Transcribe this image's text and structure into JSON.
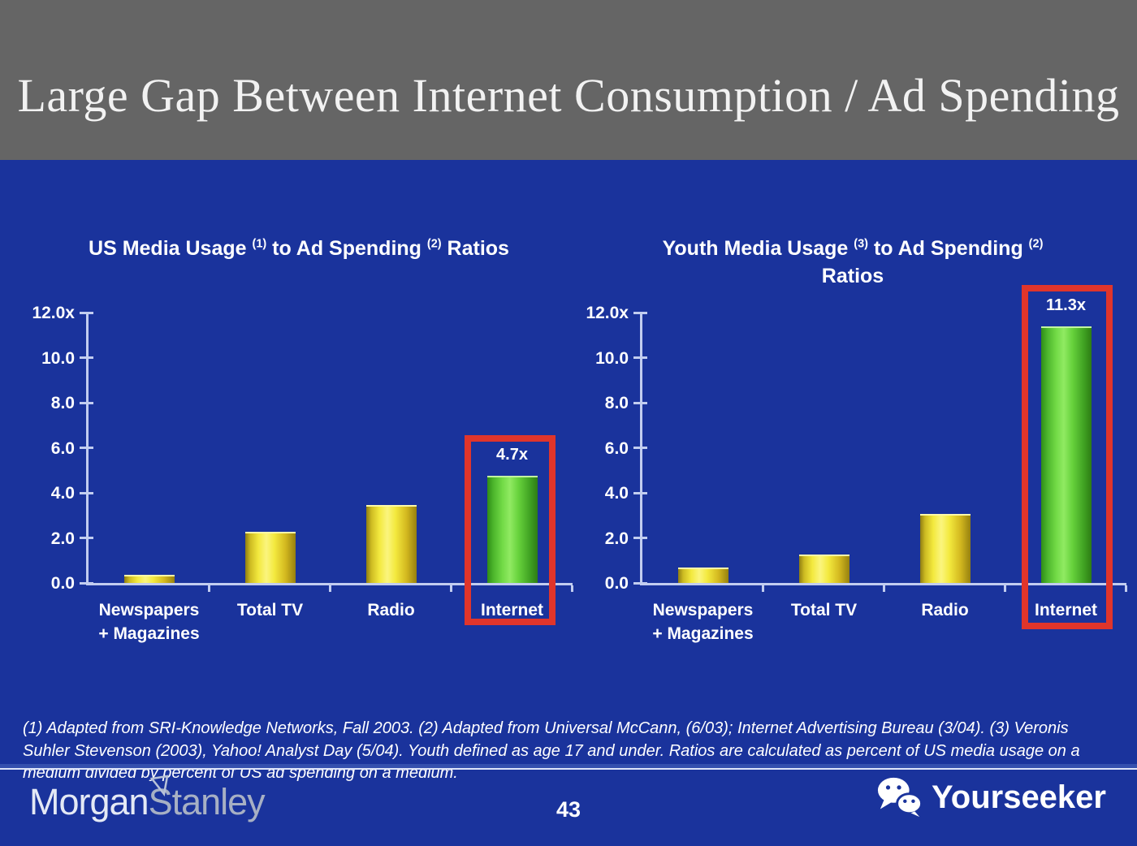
{
  "slide": {
    "title": "Large Gap Between Internet Consumption / Ad Spending",
    "footnote": "(1) Adapted from SRI-Knowledge Networks, Fall 2003.  (2) Adapted from Universal McCann, (6/03); Internet Advertising Bureau (3/04). (3) Veronis Suhler Stevenson (2003), Yahoo! Analyst Day (5/04).  Youth defined as age 17 and under.  Ratios are calculated as percent of US media usage on a medium divided by percent of US ad spending on a medium.",
    "page_number": "43"
  },
  "footer": {
    "logo": {
      "part1": "Morgan",
      "part2": "Stanley",
      "icon": "morgan-stanley-flag-icon"
    },
    "watermark": {
      "label": "Yourseeker",
      "icon": "wechat-icon"
    }
  },
  "colors": {
    "header_bg": "#656565",
    "body_bg": "#1a339c",
    "title_text": "#f2f2f2",
    "chart_text": "#ffffff",
    "axis": "#c2cdf0",
    "bar_yellow": "#f2e93c",
    "bar_green": "#5ecb39",
    "highlight_red": "#e0352b"
  },
  "chart_data": [
    {
      "type": "bar",
      "title": "US Media Usage (1) to Ad Spending (2) Ratios",
      "title_runs": [
        {
          "t": "US Media Usage "
        },
        {
          "t": "(1)",
          "sup": true
        },
        {
          "t": " to Ad Spending "
        },
        {
          "t": "(2)",
          "sup": true
        },
        {
          "t": " Ratios"
        }
      ],
      "categories": [
        "Newspapers\n+ Magazines",
        "Total TV",
        "Radio",
        "Internet"
      ],
      "values": [
        0.3,
        2.2,
        3.4,
        4.7
      ],
      "bar_styles": [
        "yellow",
        "yellow",
        "yellow",
        "green"
      ],
      "data_labels": [
        "",
        "",
        "",
        "4.7x"
      ],
      "highlight_index": 3,
      "highlight_category": "Internet",
      "y_ticks": [
        "12.0x",
        "10.0",
        "8.0",
        "6.0",
        "4.0",
        "2.0",
        "0.0"
      ],
      "ylim": [
        0,
        12
      ],
      "grid": false,
      "legend": false
    },
    {
      "type": "bar",
      "title": "Youth Media Usage (3) to Ad Spending (2) Ratios",
      "title_runs": [
        {
          "t": "Youth Media Usage "
        },
        {
          "t": "(3)",
          "sup": true
        },
        {
          "t": " to Ad Spending "
        },
        {
          "t": "(2)",
          "sup": true
        },
        {
          "br": true
        },
        {
          "t": "Ratios"
        }
      ],
      "categories": [
        "Newspapers\n+ Magazines",
        "Total TV",
        "Radio",
        "Internet"
      ],
      "values": [
        0.6,
        1.2,
        3.0,
        11.3
      ],
      "bar_styles": [
        "yellow",
        "yellow",
        "yellow",
        "green"
      ],
      "data_labels": [
        "",
        "",
        "",
        "11.3x"
      ],
      "highlight_index": 3,
      "highlight_category": "Internet",
      "y_ticks": [
        "12.0x",
        "10.0",
        "8.0",
        "6.0",
        "4.0",
        "2.0",
        "0.0"
      ],
      "ylim": [
        0,
        12
      ],
      "grid": false,
      "legend": false
    }
  ]
}
